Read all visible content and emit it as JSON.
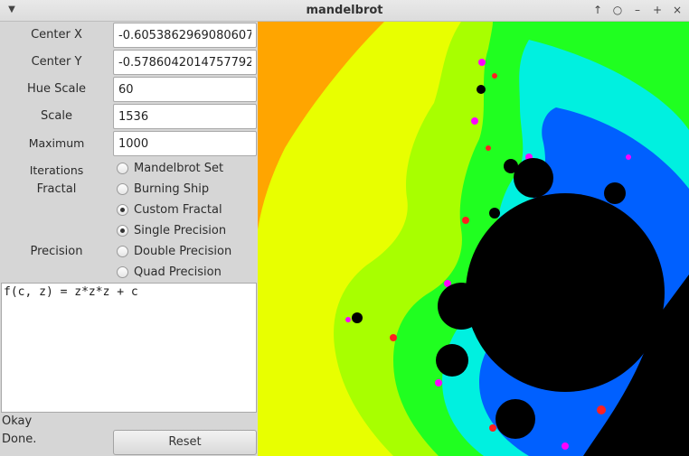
{
  "window": {
    "title": "mandelbrot",
    "menu_icon": "chevron-down-icon",
    "controls": [
      "arrow-up-icon",
      "circle-icon",
      "minimize-icon",
      "maximize-icon",
      "close-icon"
    ]
  },
  "fields": [
    {
      "label": "Center X",
      "value": "-0.6053862969080607"
    },
    {
      "label": "Center Y",
      "value": "-0.5786042014757792"
    },
    {
      "label": "Hue Scale",
      "value": "60"
    },
    {
      "label": "Scale",
      "value": "1536"
    },
    {
      "label": "Maximum Iterations",
      "value": "1000"
    }
  ],
  "fractal": {
    "label": "Fractal",
    "options": [
      {
        "label": "Mandelbrot Set",
        "selected": false
      },
      {
        "label": "Burning Ship",
        "selected": false
      },
      {
        "label": "Custom Fractal",
        "selected": true
      }
    ]
  },
  "precision": {
    "label": "Precision",
    "options": [
      {
        "label": "Single Precision",
        "selected": true
      },
      {
        "label": "Double Precision",
        "selected": false
      },
      {
        "label": "Quad Precision",
        "selected": false
      }
    ]
  },
  "editor": {
    "text": "f(c, z) = z*z*z + c"
  },
  "status": {
    "line1": "Okay",
    "line2": "Done."
  },
  "reset_label": "Reset",
  "colors": {
    "orange": "#ffa500",
    "yellow": "#e8ff00",
    "lime": "#a8ff00",
    "green": "#20ff20",
    "cyan": "#00f0e0",
    "blue": "#0060ff",
    "interior": "#000000"
  }
}
